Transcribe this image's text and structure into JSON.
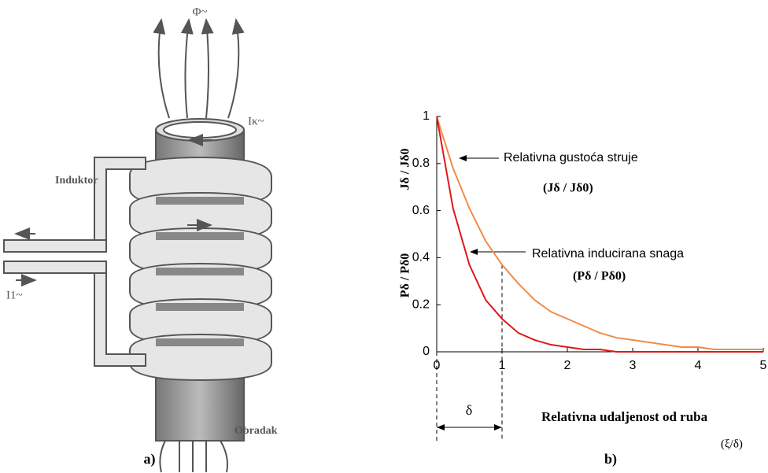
{
  "figure_a": {
    "flux_label": "Φ~",
    "coil_current_label": "Iκ~",
    "inductor_label": "Induktor",
    "input_current_label": "I1~",
    "workpiece_label": "Obradak",
    "panel_label": "a)"
  },
  "chart_data": {
    "type": "line",
    "x": [
      0,
      0.25,
      0.5,
      0.75,
      1,
      1.25,
      1.5,
      1.75,
      2,
      2.25,
      2.5,
      2.75,
      3,
      3.25,
      3.5,
      3.75,
      4,
      4.25,
      4.5,
      4.75,
      5
    ],
    "series": [
      {
        "color": "#f08c48",
        "values": [
          1,
          0.78,
          0.61,
          0.47,
          0.37,
          0.29,
          0.22,
          0.17,
          0.14,
          0.11,
          0.08,
          0.06,
          0.05,
          0.04,
          0.03,
          0.02,
          0.02,
          0.01,
          0.01,
          0.01,
          0.01
        ]
      },
      {
        "color": "#e01818",
        "values": [
          1,
          0.61,
          0.37,
          0.22,
          0.14,
          0.08,
          0.05,
          0.03,
          0.02,
          0.01,
          0.01,
          0,
          0,
          0,
          0,
          0,
          0,
          0,
          0,
          0,
          0
        ]
      }
    ],
    "xlim": [
      0,
      5
    ],
    "ylim": [
      0,
      1
    ],
    "xticks": [
      0,
      1,
      2,
      3,
      4,
      5
    ],
    "yticks": [
      0,
      0.2,
      0.4,
      0.6,
      0.8,
      1
    ],
    "y_label_top": "Jδ / Jδ0",
    "y_label_bottom": "Pδ / Pδ0",
    "x_label": "Relativna udaljenost od ruba",
    "x_label_unit": "(ξ/δ)",
    "annotation_current": "Relativna gustoća struje",
    "annotation_current_ratio": "(Jδ / Jδ0)",
    "annotation_power": "Relativna inducirana snaga",
    "annotation_power_ratio": "(Pδ / Pδ0)",
    "delta_label": "δ",
    "panel_label": "b)"
  }
}
